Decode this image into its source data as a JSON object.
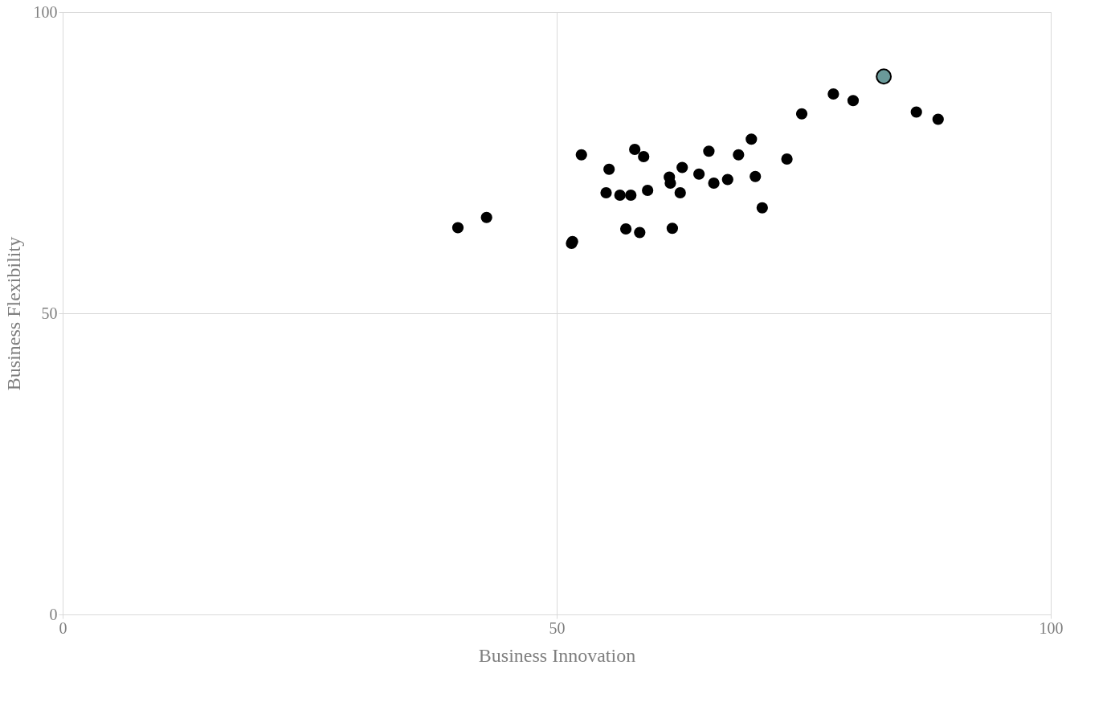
{
  "chart_data": {
    "type": "scatter",
    "xlabel": "Business Innovation",
    "ylabel": "Business Flexibility",
    "xlim": [
      0,
      100
    ],
    "ylim": [
      0,
      100
    ],
    "xticks": [
      0,
      50,
      100
    ],
    "yticks": [
      0,
      50,
      100
    ],
    "grid": true,
    "legend": false,
    "marker": "circle",
    "series": [
      {
        "color": "#000000",
        "x": [
          40.0,
          42.9,
          51.5,
          51.6,
          52.5,
          55.0,
          55.3,
          56.4,
          57.0,
          57.5,
          57.9,
          58.4,
          58.8,
          59.2,
          61.4,
          61.5,
          61.7,
          62.5,
          62.7,
          64.4,
          65.4,
          65.9,
          67.3,
          68.4,
          69.7,
          70.1,
          70.8,
          73.3,
          74.8,
          78.0,
          80.0,
          86.4,
          88.6
        ],
        "values": [
          64.2,
          65.9,
          61.6,
          61.9,
          76.3,
          70.0,
          73.9,
          69.6,
          64.0,
          69.6,
          77.2,
          63.4,
          76.0,
          70.4,
          72.6,
          71.6,
          64.1,
          70.0,
          74.2,
          73.1,
          76.9,
          71.6,
          72.2,
          76.3,
          78.9,
          72.7,
          67.5,
          75.6,
          83.1,
          86.4,
          85.3,
          83.4,
          82.2
        ]
      },
      {
        "color": "#6a9a9a",
        "x": [
          83.1
        ],
        "values": [
          89.3
        ]
      }
    ]
  }
}
